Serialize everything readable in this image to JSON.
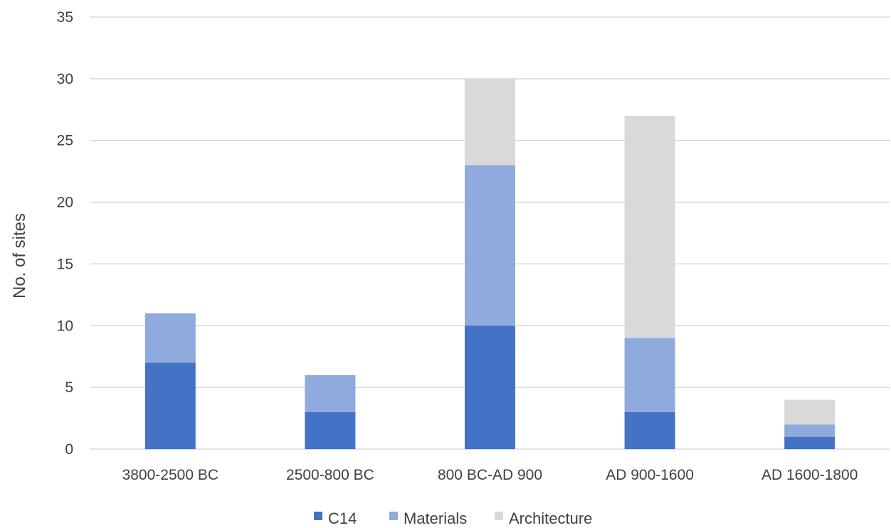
{
  "chart_data": {
    "type": "bar",
    "stacked": true,
    "categories": [
      "3800-2500 BC",
      "2500-800 BC",
      "800 BC-AD 900",
      "AD 900-1600",
      "AD 1600-1800"
    ],
    "series": [
      {
        "name": "C14",
        "values": [
          7,
          3,
          10,
          3,
          1
        ],
        "color": "#4472c4"
      },
      {
        "name": "Materials",
        "values": [
          4,
          3,
          13,
          6,
          1
        ],
        "color": "#8faadc"
      },
      {
        "name": "Architecture",
        "values": [
          0,
          0,
          7,
          18,
          2
        ],
        "color": "#d9d9d9"
      }
    ],
    "title": "",
    "xlabel": "",
    "ylabel": "No. of sites",
    "ylim": [
      0,
      35
    ],
    "yticks": [
      0,
      5,
      10,
      15,
      20,
      25,
      30,
      35
    ],
    "grid": true,
    "legend_position": "bottom",
    "colors": {
      "gridline": "#d9d9d9",
      "text": "#404040"
    }
  }
}
